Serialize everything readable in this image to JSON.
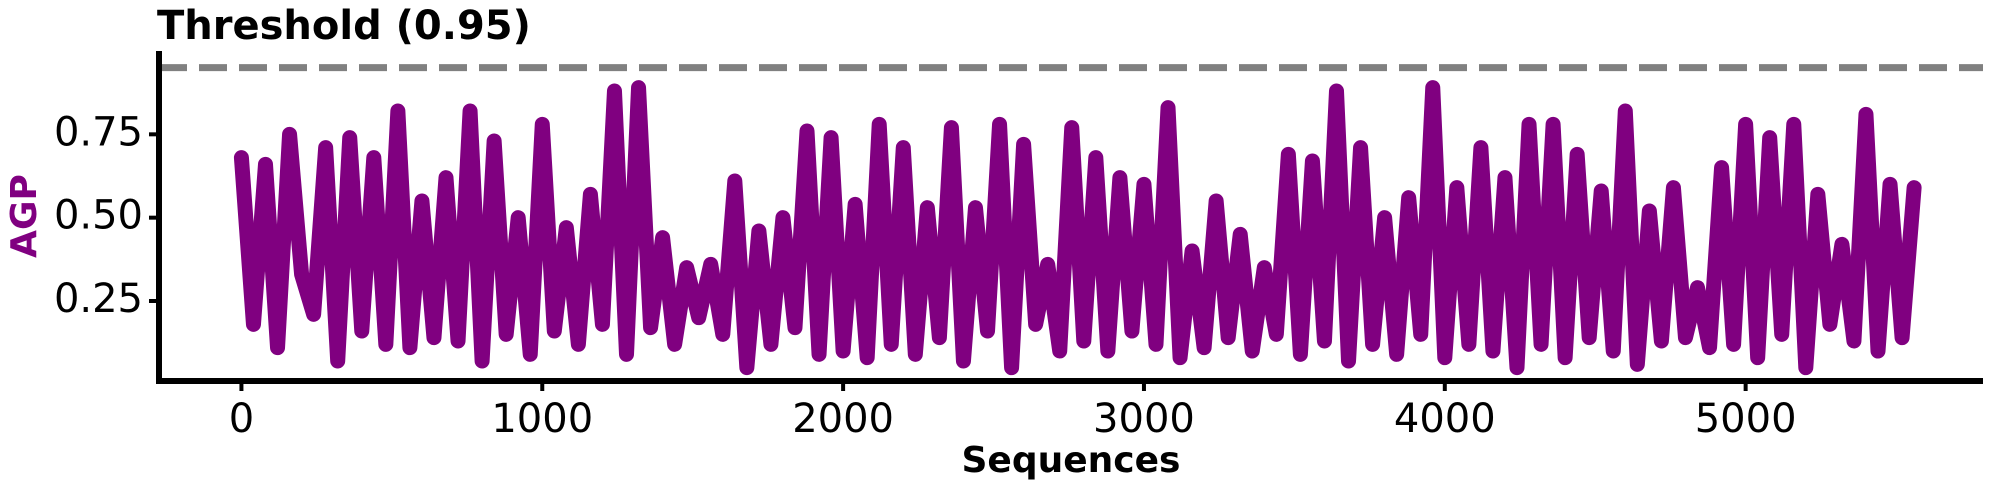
{
  "chart_data": {
    "type": "line",
    "title": "Threshold (0.95)",
    "x_label": "Sequences",
    "y_label": "AGP",
    "threshold": 0.95,
    "threshold_color": "#808080",
    "x": [
      0,
      40,
      80,
      120,
      160,
      200,
      240,
      280,
      320,
      360,
      400,
      440,
      480,
      520,
      560,
      600,
      640,
      680,
      720,
      760,
      800,
      840,
      880,
      920,
      960,
      1000,
      1040,
      1080,
      1120,
      1160,
      1200,
      1240,
      1280,
      1320,
      1360,
      1400,
      1440,
      1480,
      1520,
      1560,
      1600,
      1640,
      1680,
      1720,
      1760,
      1800,
      1840,
      1880,
      1920,
      1960,
      2000,
      2040,
      2080,
      2120,
      2160,
      2200,
      2240,
      2280,
      2320,
      2360,
      2400,
      2440,
      2480,
      2520,
      2560,
      2600,
      2640,
      2680,
      2720,
      2760,
      2800,
      2840,
      2880,
      2920,
      2960,
      3000,
      3040,
      3080,
      3120,
      3160,
      3200,
      3240,
      3280,
      3320,
      3360,
      3400,
      3440,
      3480,
      3520,
      3560,
      3600,
      3640,
      3680,
      3720,
      3760,
      3800,
      3840,
      3880,
      3920,
      3960,
      4000,
      4040,
      4080,
      4120,
      4160,
      4200,
      4240,
      4280,
      4320,
      4360,
      4400,
      4440,
      4480,
      4520,
      4560,
      4600,
      4640,
      4680,
      4720,
      4760,
      4800,
      4840,
      4880,
      4920,
      4960,
      5000,
      5040,
      5080,
      5120,
      5160,
      5200,
      5240,
      5280,
      5320,
      5360,
      5400,
      5440,
      5480,
      5520,
      5560
    ],
    "series": [
      {
        "name": "AGP",
        "color": "#800080",
        "values": [
          0.68,
          0.18,
          0.66,
          0.11,
          0.75,
          0.33,
          0.21,
          0.71,
          0.07,
          0.74,
          0.16,
          0.68,
          0.12,
          0.82,
          0.11,
          0.55,
          0.14,
          0.62,
          0.13,
          0.82,
          0.07,
          0.73,
          0.15,
          0.5,
          0.09,
          0.78,
          0.16,
          0.47,
          0.12,
          0.57,
          0.18,
          0.88,
          0.09,
          0.89,
          0.17,
          0.44,
          0.12,
          0.35,
          0.2,
          0.36,
          0.15,
          0.61,
          0.05,
          0.46,
          0.12,
          0.5,
          0.17,
          0.76,
          0.09,
          0.74,
          0.1,
          0.54,
          0.08,
          0.78,
          0.12,
          0.71,
          0.09,
          0.53,
          0.14,
          0.77,
          0.07,
          0.53,
          0.16,
          0.78,
          0.05,
          0.72,
          0.18,
          0.36,
          0.1,
          0.77,
          0.13,
          0.68,
          0.1,
          0.62,
          0.16,
          0.6,
          0.12,
          0.83,
          0.08,
          0.4,
          0.11,
          0.55,
          0.14,
          0.45,
          0.1,
          0.35,
          0.15,
          0.69,
          0.09,
          0.67,
          0.13,
          0.88,
          0.07,
          0.71,
          0.12,
          0.5,
          0.09,
          0.56,
          0.15,
          0.89,
          0.08,
          0.59,
          0.12,
          0.71,
          0.1,
          0.62,
          0.05,
          0.78,
          0.12,
          0.78,
          0.08,
          0.69,
          0.14,
          0.58,
          0.1,
          0.82,
          0.06,
          0.52,
          0.13,
          0.59,
          0.14,
          0.29,
          0.11,
          0.65,
          0.12,
          0.78,
          0.08,
          0.74,
          0.15,
          0.78,
          0.05,
          0.57,
          0.18,
          0.42,
          0.13,
          0.81,
          0.1,
          0.6,
          0.14,
          0.59
        ]
      }
    ],
    "xlim": [
      -274,
      5789
    ],
    "ylim": [
      0.01,
      1.0
    ],
    "xticks": [
      0,
      1000,
      2000,
      3000,
      4000,
      5000
    ],
    "yticks": [
      0.25,
      {
        "value": 0.5,
        "label": "0.50"
      },
      0.75
    ]
  }
}
